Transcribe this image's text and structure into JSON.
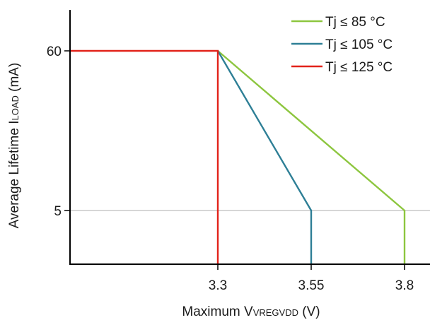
{
  "chart_data": {
    "type": "line",
    "title": "",
    "xlabel": {
      "prefix": "Maximum V",
      "sub": "VREGVDD",
      "suffix": " (V)"
    },
    "ylabel": {
      "prefix": "Average Lifetime I",
      "sub": "LOAD",
      "suffix": " (mA)"
    },
    "x_ticks": [
      {
        "value": 3.3,
        "label": "3.3"
      },
      {
        "value": 3.55,
        "label": "3.55"
      },
      {
        "value": 3.8,
        "label": "3.8"
      }
    ],
    "y_ticks": [
      {
        "value": 5,
        "label": "5"
      },
      {
        "value": 60,
        "label": "60"
      }
    ],
    "y_scale": "categorical-levels",
    "gridlines": [
      {
        "axis": "y",
        "value": 5,
        "color": "#c8c8c8"
      }
    ],
    "legend_position": "top-right",
    "series": [
      {
        "name": "Tj ≤ 85 °C",
        "color": "#8dc63f",
        "points": [
          {
            "x": 3.3,
            "y": 60
          },
          {
            "x": 3.8,
            "y": 5
          },
          {
            "x": 3.8,
            "y": "axis-min"
          }
        ]
      },
      {
        "name": "Tj ≤ 105 °C",
        "color": "#2e7f96",
        "points": [
          {
            "x": 3.3,
            "y": 60
          },
          {
            "x": 3.55,
            "y": 5
          },
          {
            "x": 3.55,
            "y": "axis-min"
          }
        ]
      },
      {
        "name": "Tj ≤ 125 °C",
        "color": "#e2231a",
        "points": [
          {
            "x": "axis-min",
            "y": 60
          },
          {
            "x": 3.3,
            "y": 60
          },
          {
            "x": 3.3,
            "y": "axis-min"
          }
        ]
      }
    ]
  }
}
